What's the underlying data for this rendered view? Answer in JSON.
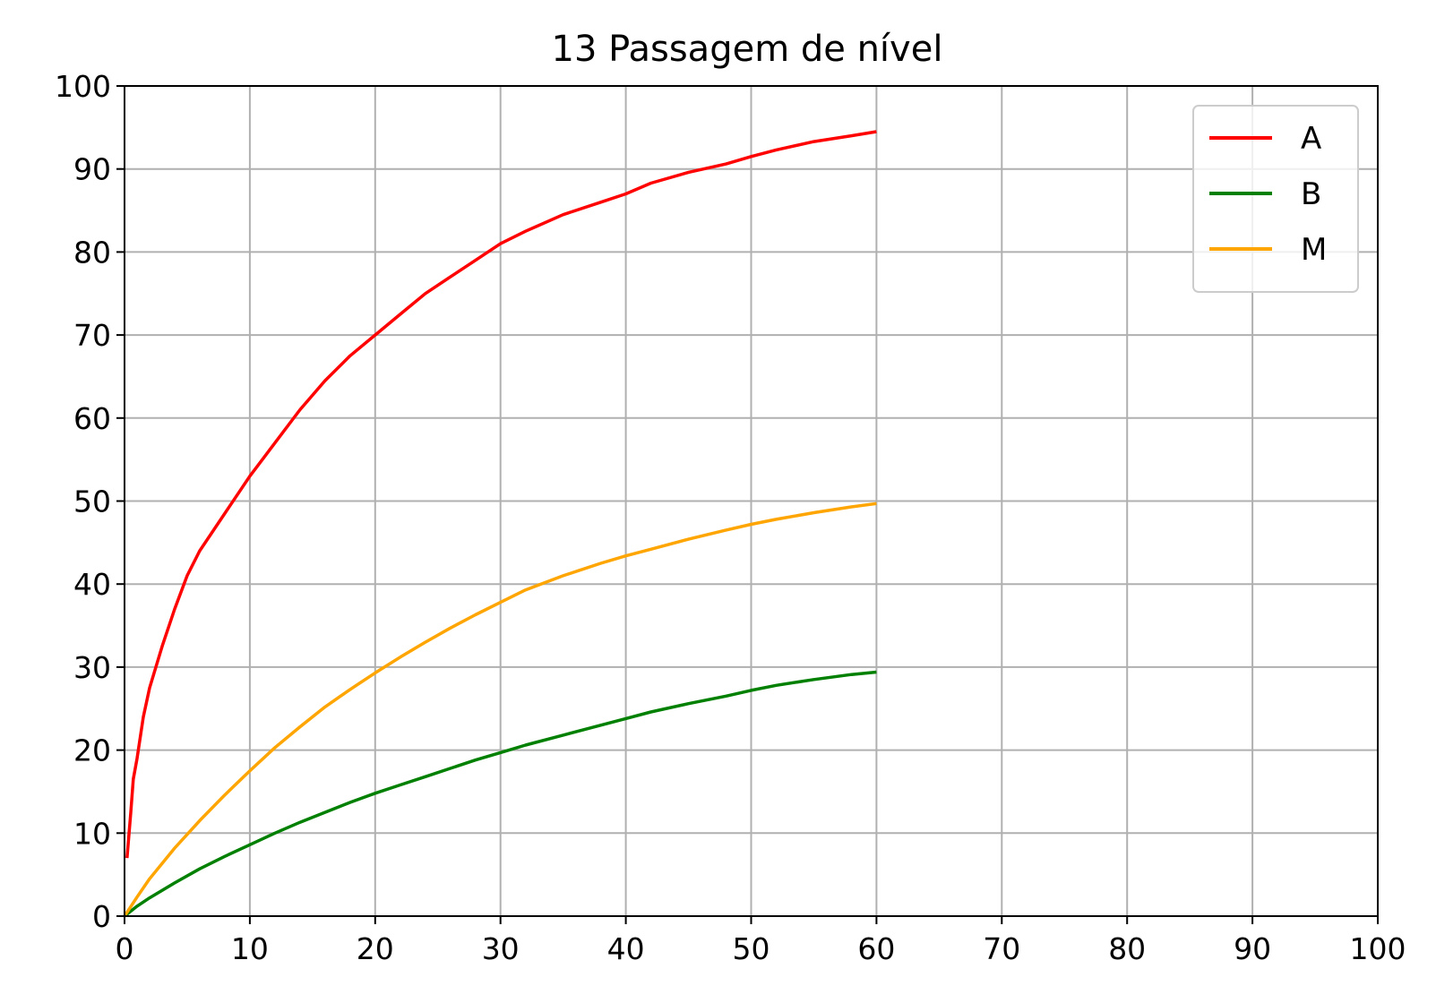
{
  "chart_data": {
    "type": "line",
    "title": "13 Passagem de nível",
    "xlabel": "",
    "ylabel": "",
    "xlim": [
      0,
      100
    ],
    "ylim": [
      0,
      100
    ],
    "xticks": [
      0,
      10,
      20,
      30,
      40,
      50,
      60,
      70,
      80,
      90,
      100
    ],
    "yticks": [
      0,
      10,
      20,
      30,
      40,
      50,
      60,
      70,
      80,
      90,
      100
    ],
    "grid": true,
    "legend_position": "top-right",
    "series": [
      {
        "name": "A",
        "color": "#ff0000",
        "x": [
          0.2,
          0.5,
          0.7,
          1,
          1.5,
          2,
          3,
          4,
          5,
          6,
          8,
          10,
          12,
          14,
          16,
          18,
          20,
          22,
          24,
          26,
          28,
          30,
          32,
          35,
          38,
          40,
          42,
          45,
          48,
          50,
          52,
          55,
          58,
          60
        ],
        "y": [
          7,
          12.5,
          16.5,
          19,
          24,
          27.5,
          32.5,
          37,
          41,
          44,
          48.5,
          53,
          57,
          61,
          64.5,
          67.5,
          70,
          72.5,
          75,
          77,
          79,
          81,
          82.5,
          84.5,
          86,
          87,
          88.3,
          89.6,
          90.6,
          91.5,
          92.3,
          93.3,
          94,
          94.5
        ]
      },
      {
        "name": "B",
        "color": "#008000",
        "x": [
          0,
          1,
          2,
          4,
          6,
          8,
          10,
          12,
          14,
          16,
          18,
          20,
          22,
          24,
          26,
          28,
          30,
          32,
          35,
          38,
          40,
          42,
          45,
          48,
          50,
          52,
          55,
          58,
          60
        ],
        "y": [
          0,
          1.2,
          2.2,
          4,
          5.7,
          7.2,
          8.6,
          10,
          11.3,
          12.5,
          13.7,
          14.8,
          15.8,
          16.8,
          17.8,
          18.8,
          19.7,
          20.6,
          21.8,
          23,
          23.8,
          24.6,
          25.6,
          26.5,
          27.2,
          27.8,
          28.5,
          29.1,
          29.4
        ]
      },
      {
        "name": "M",
        "color": "#ffa500",
        "x": [
          0,
          1,
          2,
          4,
          6,
          8,
          10,
          12,
          14,
          16,
          18,
          20,
          22,
          24,
          26,
          28,
          30,
          32,
          35,
          38,
          40,
          42,
          45,
          48,
          50,
          52,
          55,
          58,
          60
        ],
        "y": [
          0,
          2.3,
          4.5,
          8.2,
          11.5,
          14.6,
          17.5,
          20.3,
          22.8,
          25.2,
          27.3,
          29.3,
          31.2,
          33,
          34.7,
          36.3,
          37.8,
          39.3,
          41,
          42.5,
          43.4,
          44.2,
          45.4,
          46.5,
          47.2,
          47.8,
          48.6,
          49.3,
          49.7
        ]
      }
    ]
  }
}
